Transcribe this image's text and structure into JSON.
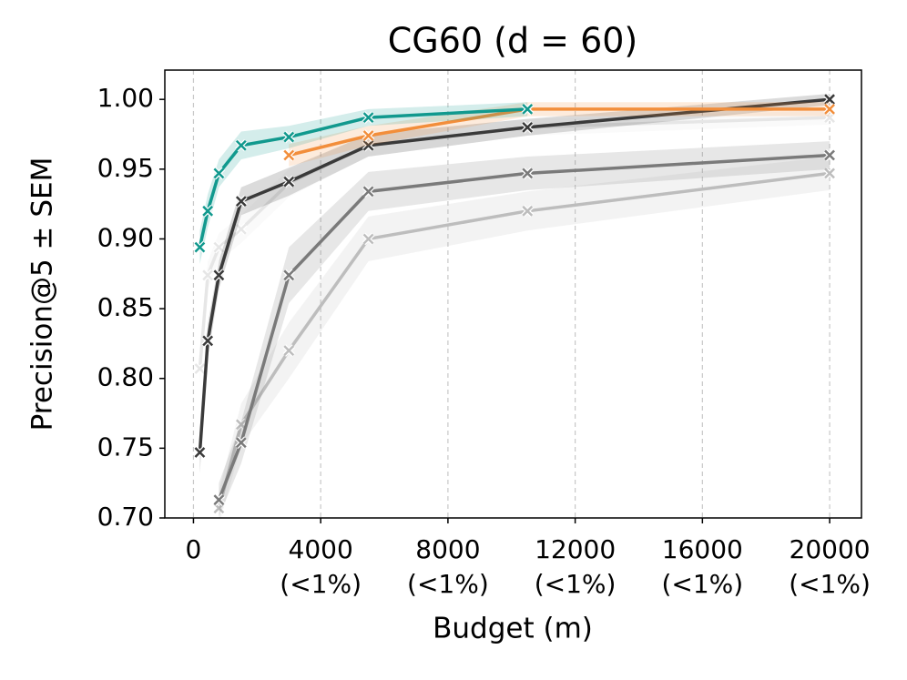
{
  "chart_data": {
    "type": "line",
    "title": "CG60 (d = 60)",
    "x_label": "Budget (m)",
    "y_label": "Precision@5 ± SEM",
    "x": [
      200,
      450,
      800,
      1500,
      3000,
      5500,
      10500,
      20000
    ],
    "series": [
      {
        "color": "#e6e6e6",
        "values": [
          0.807,
          0.874,
          0.894,
          0.907,
          0.94,
          0.967,
          0.98,
          0.987
        ],
        "errors": [
          0.01,
          0.01,
          0.01,
          0.01,
          0.01,
          0.008,
          0.006,
          0.005
        ]
      },
      {
        "color": "#bdbdbd",
        "values": [
          null,
          null,
          0.707,
          0.767,
          0.82,
          0.9,
          0.92,
          0.947
        ],
        "errors": [
          null,
          null,
          0.012,
          0.015,
          0.02,
          0.016,
          0.014,
          0.012
        ]
      },
      {
        "color": "#7a7a7a",
        "values": [
          null,
          null,
          0.713,
          0.754,
          0.874,
          0.934,
          0.947,
          0.96
        ],
        "errors": [
          null,
          null,
          0.012,
          0.015,
          0.02,
          0.014,
          0.012,
          0.01
        ]
      },
      {
        "color": "#3a3a3a",
        "values": [
          0.747,
          0.827,
          0.874,
          0.927,
          0.941,
          0.967,
          0.98,
          1.0
        ],
        "errors": [
          0.015,
          0.012,
          0.01,
          0.01,
          0.01,
          0.008,
          0.006,
          0.004
        ]
      },
      {
        "color": "#f28e3b",
        "values": [
          null,
          null,
          null,
          null,
          0.96,
          0.974,
          0.993,
          0.993
        ],
        "errors": [
          null,
          null,
          null,
          null,
          0.008,
          0.007,
          0.005,
          0.005
        ]
      },
      {
        "color": "#11998e",
        "values": [
          0.894,
          0.92,
          0.947,
          0.967,
          0.973,
          0.987,
          0.993,
          null
        ],
        "errors": [
          0.012,
          0.012,
          0.01,
          0.01,
          0.008,
          0.006,
          0.005,
          null
        ]
      }
    ],
    "xlim": [
      -900,
      21000
    ],
    "ylim": [
      0.7,
      1.021
    ],
    "xticks": [
      0,
      {
        "value": 4000,
        "label": [
          "4000",
          "(<1%)"
        ]
      },
      {
        "value": 8000,
        "label": [
          "8000",
          "(<1%)"
        ]
      },
      {
        "value": 12000,
        "label": [
          "12000",
          "(<1%)"
        ]
      },
      {
        "value": 16000,
        "label": [
          "16000",
          "(<1%)"
        ]
      },
      {
        "value": 20000,
        "label": [
          "20000",
          "(<1%)"
        ]
      }
    ],
    "yticks": [
      {
        "value": 0.7,
        "label": "0.70"
      },
      {
        "value": 0.75,
        "label": "0.75"
      },
      {
        "value": 0.8,
        "label": "0.80"
      },
      {
        "value": 0.85,
        "label": "0.85"
      },
      {
        "value": 0.9,
        "label": "0.90"
      },
      {
        "value": 0.95,
        "label": "0.95"
      },
      {
        "value": 1.0,
        "label": "1.00"
      }
    ],
    "grid": "x"
  }
}
